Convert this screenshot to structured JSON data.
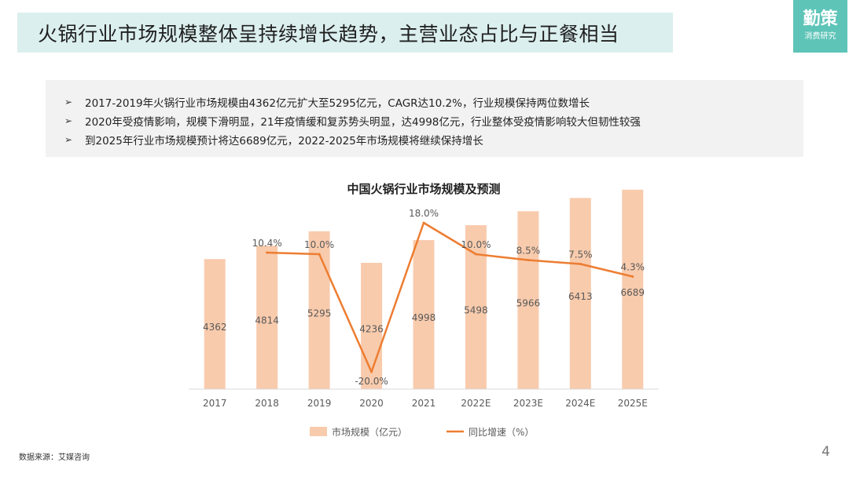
{
  "header": {
    "title": "火锅行业市场规模整体呈持续增长趋势，主营业态占比与正餐相当",
    "logo_main": "勤策",
    "logo_sub": "消费研究"
  },
  "summary": {
    "items": [
      "2017-2019年火锅行业市场规模由4362亿元扩大至5295亿元，CAGR达10.2%，行业规模保持两位数增长",
      "2020年受疫情影响，规模下滑明显，21年疫情缓和复苏势头明显，达4998亿元，行业整体受疫情影响较大但韧性较强",
      "到2025年行业市场规模预计将达6689亿元，2022-2025年市场规模将继续保持增长"
    ]
  },
  "chart_data": {
    "type": "bar",
    "title": "中国火锅行业市场规模及预测",
    "categories": [
      "2017",
      "2018",
      "2019",
      "2020",
      "2021",
      "2022E",
      "2023E",
      "2024E",
      "2025E"
    ],
    "series": [
      {
        "name": "市场规模（亿元）",
        "type": "bar",
        "values": [
          4362,
          4814,
          5295,
          4236,
          4998,
          5498,
          5966,
          6413,
          6689
        ],
        "labels": [
          "4362",
          "4814",
          "5295",
          "4236",
          "4998",
          "5498",
          "5966",
          "6413",
          "6689"
        ]
      },
      {
        "name": "同比增速（%）",
        "type": "line",
        "values": [
          null,
          10.4,
          10.0,
          -20.0,
          18.0,
          10.0,
          8.5,
          7.5,
          4.3
        ],
        "labels": [
          "",
          "10.4%",
          "10.0%",
          "-20.0%",
          "18.0%",
          "10.0%",
          "8.5%",
          "7.5%",
          "4.3%"
        ]
      }
    ],
    "bar_ylim": [
      0,
      8000
    ],
    "line_ylim": [
      -25,
      20
    ],
    "legend_position": "bottom",
    "grid": false,
    "colors": {
      "bar": "#f8cbad",
      "line": "#ed7d31",
      "axis": "#d9d9d9",
      "text": "#595959"
    }
  },
  "footer": {
    "source": "数据来源：艾媒咨询",
    "page": "4"
  }
}
